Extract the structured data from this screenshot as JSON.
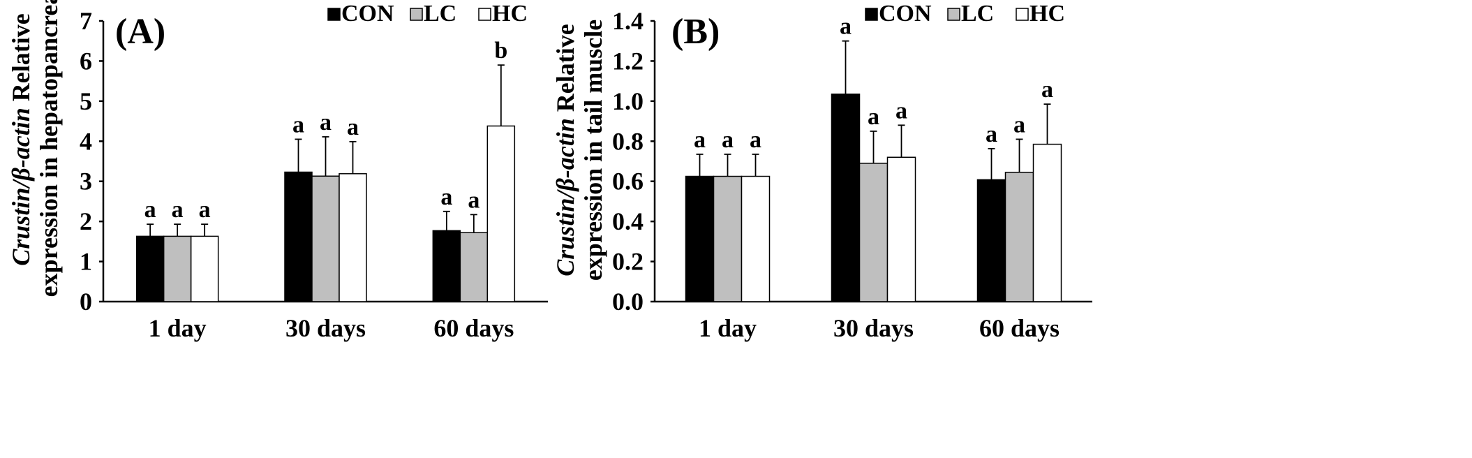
{
  "colors": {
    "CON": "#000000",
    "LC": "#bfbfbf",
    "HC": "#ffffff",
    "stroke": "#000000"
  },
  "chart_data": [
    {
      "type": "bar",
      "panel_label": "(A)",
      "ylabel": {
        "italic_part": "Crustin/β-actin",
        "line1_rest": " Relative",
        "line2": "expression in hepatopancreas"
      },
      "categories": [
        "1 day",
        "30 days",
        "60 days"
      ],
      "ylim": [
        0,
        7
      ],
      "yticks": [
        "0",
        "1",
        "2",
        "3",
        "4",
        "5",
        "6",
        "7"
      ],
      "legend": [
        "CON",
        "LC",
        "HC"
      ],
      "series": [
        {
          "name": "CON",
          "values": [
            1.63,
            3.23,
            1.77
          ],
          "errors": [
            0.3,
            0.82,
            0.48
          ],
          "letters": [
            "a",
            "a",
            "a"
          ]
        },
        {
          "name": "LC",
          "values": [
            1.63,
            3.13,
            1.72
          ],
          "errors": [
            0.3,
            0.98,
            0.45
          ],
          "letters": [
            "a",
            "a",
            "a"
          ]
        },
        {
          "name": "HC",
          "values": [
            1.63,
            3.19,
            4.38
          ],
          "errors": [
            0.3,
            0.8,
            1.52
          ],
          "letters": [
            "a",
            "a",
            "b"
          ]
        }
      ]
    },
    {
      "type": "bar",
      "panel_label": "(B)",
      "ylabel": {
        "italic_part": "Crustin/β-actin",
        "line1_rest": " Relative",
        "line2": "expression in tail muscle"
      },
      "categories": [
        "1 day",
        "30 days",
        "60 days"
      ],
      "ylim": [
        0,
        1.4
      ],
      "yticks": [
        "0.0",
        "0.2",
        "0.4",
        "0.6",
        "0.8",
        "1.0",
        "1.2",
        "1.4"
      ],
      "legend": [
        "CON",
        "LC",
        "HC"
      ],
      "series": [
        {
          "name": "CON",
          "values": [
            0.625,
            1.035,
            0.608
          ],
          "errors": [
            0.11,
            0.265,
            0.155
          ],
          "letters": [
            "a",
            "a",
            "a"
          ]
        },
        {
          "name": "LC",
          "values": [
            0.625,
            0.69,
            0.645
          ],
          "errors": [
            0.11,
            0.16,
            0.165
          ],
          "letters": [
            "a",
            "a",
            "a"
          ]
        },
        {
          "name": "HC",
          "values": [
            0.625,
            0.72,
            0.785
          ],
          "errors": [
            0.11,
            0.16,
            0.2
          ],
          "letters": [
            "a",
            "a",
            "a"
          ]
        }
      ]
    }
  ]
}
